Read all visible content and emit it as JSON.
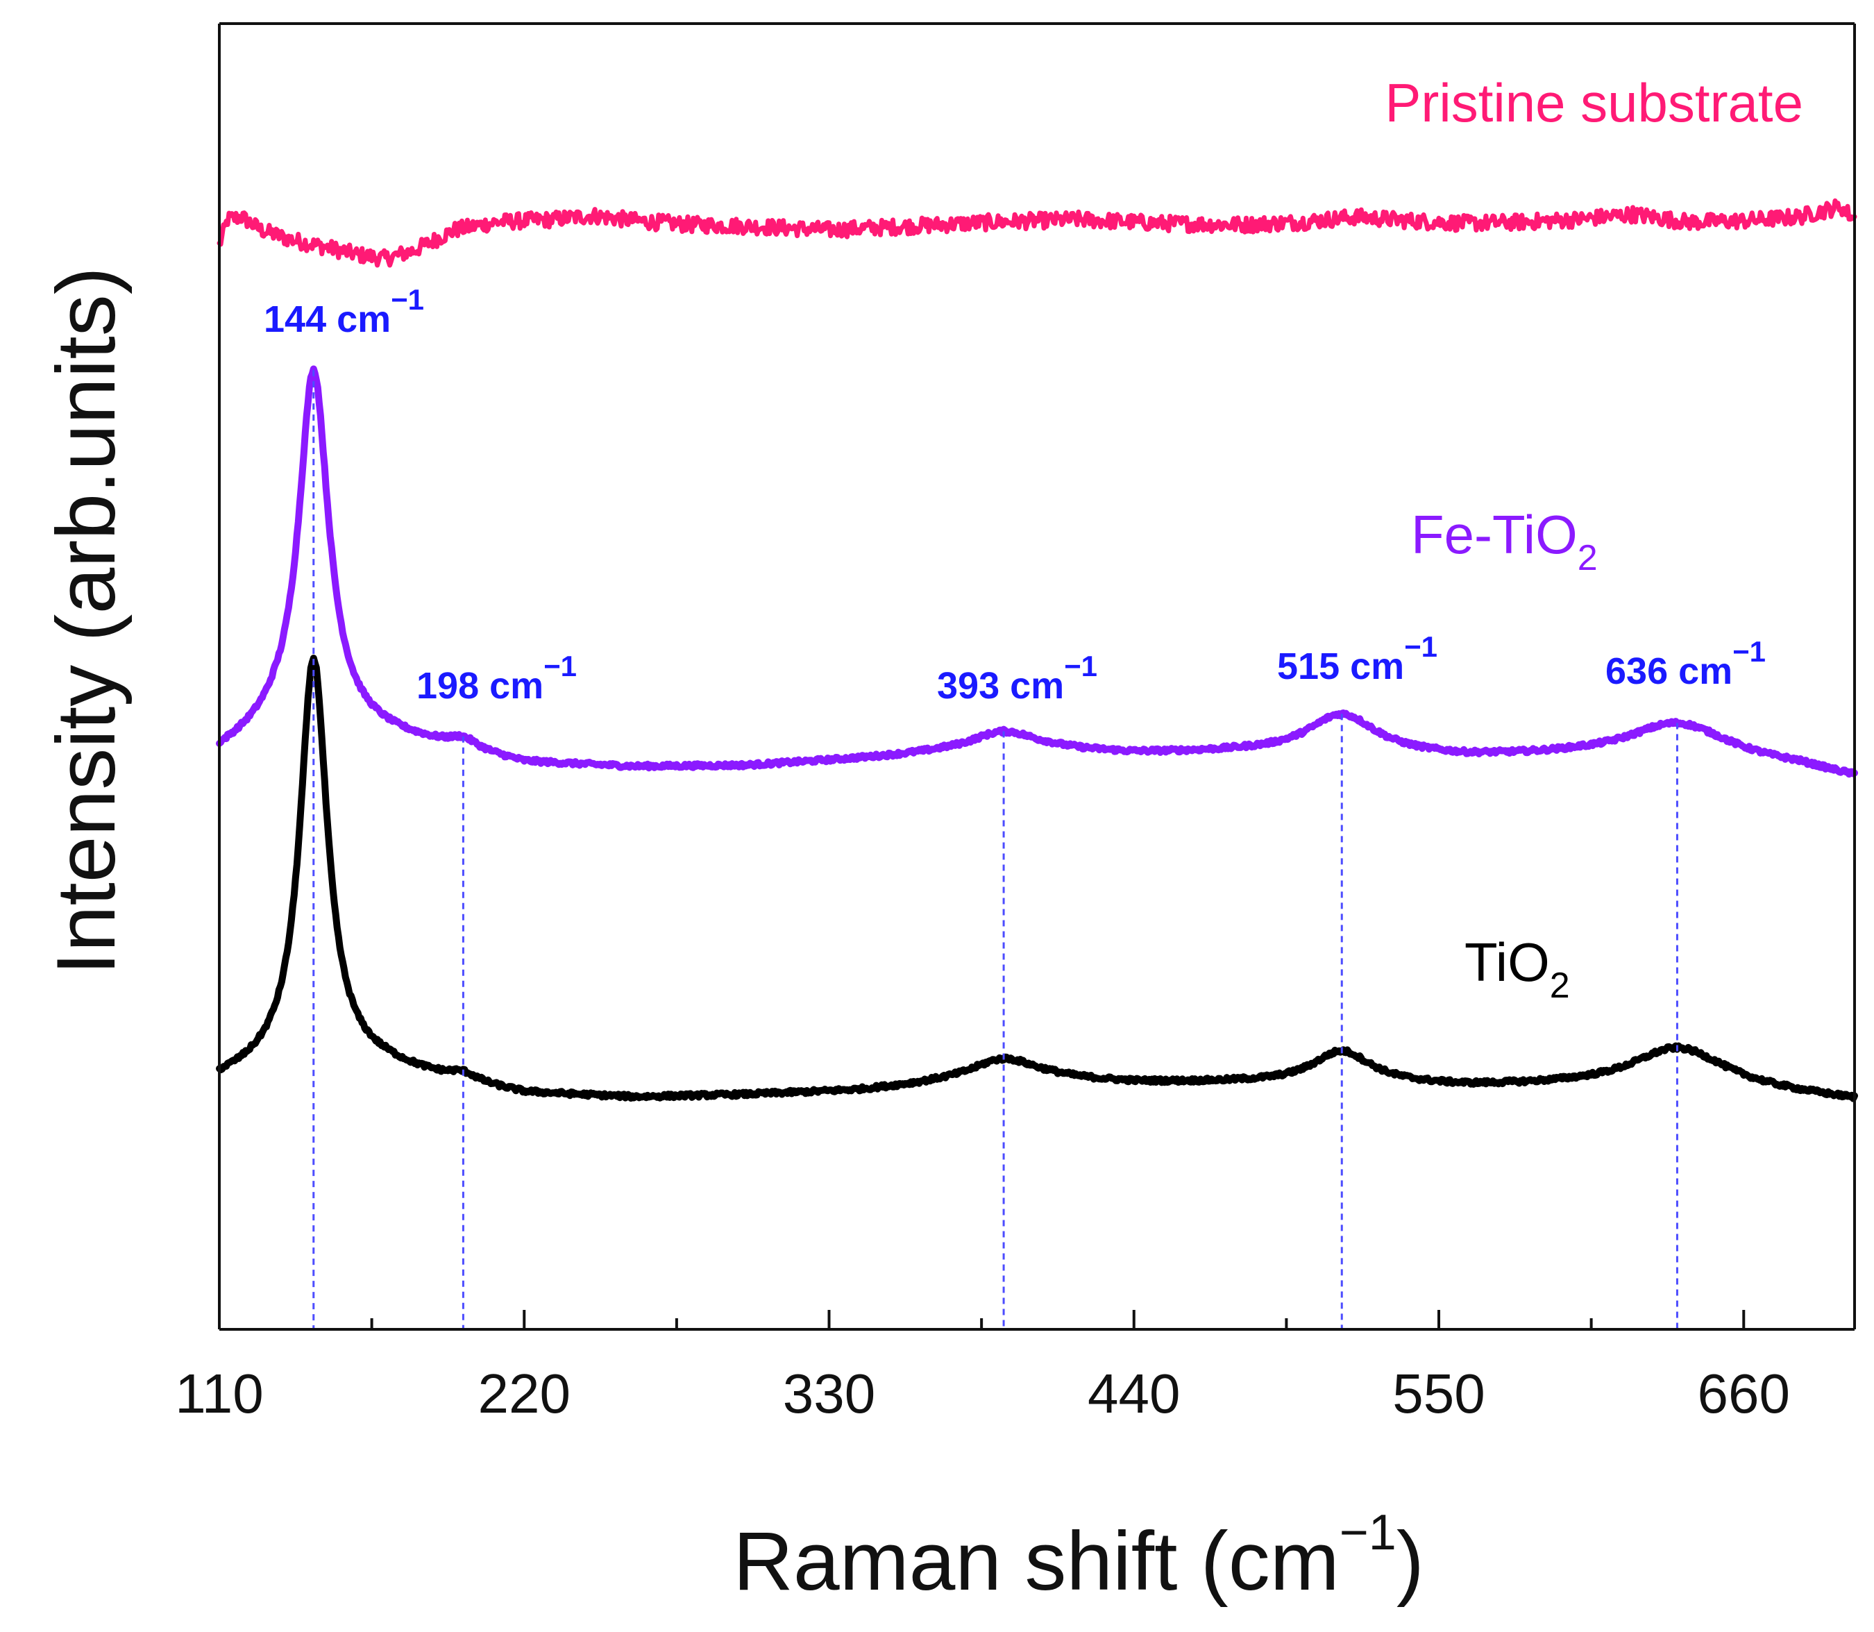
{
  "chart_data": {
    "type": "line",
    "xlabel": "Raman shift (cm",
    "xlabel_sup": "−1",
    "xlabel_suffix": ")",
    "ylabel": "Intensity (arb.units)",
    "xlim": [
      110,
      700
    ],
    "ylim": [
      0,
      100
    ],
    "x_ticks": [
      110,
      220,
      330,
      440,
      550,
      660
    ],
    "y_ticks_shown": false,
    "grid": false,
    "colors": {
      "axis": "#111111",
      "pristine": "#ff1a75",
      "fe_tio2": "#8b1aff",
      "tio2": "#000000",
      "peak_label": "#1a1aff",
      "peak_line": "#4d4dff"
    },
    "series": [
      {
        "name": "Pristine substrate",
        "color_key": "pristine",
        "noise": 0.6,
        "points": [
          [
            110,
            83.0
          ],
          [
            113,
            85.0
          ],
          [
            118,
            85.2
          ],
          [
            125,
            84.2
          ],
          [
            135,
            83.5
          ],
          [
            150,
            82.8
          ],
          [
            160,
            82.3
          ],
          [
            170,
            82.0
          ],
          [
            180,
            82.6
          ],
          [
            195,
            84.2
          ],
          [
            210,
            84.8
          ],
          [
            230,
            85.0
          ],
          [
            245,
            85.3
          ],
          [
            260,
            84.9
          ],
          [
            280,
            84.6
          ],
          [
            300,
            84.5
          ],
          [
            330,
            84.2
          ],
          [
            360,
            84.5
          ],
          [
            390,
            84.8
          ],
          [
            420,
            85.0
          ],
          [
            450,
            84.7
          ],
          [
            480,
            84.6
          ],
          [
            500,
            84.8
          ],
          [
            520,
            85.2
          ],
          [
            540,
            84.9
          ],
          [
            560,
            84.7
          ],
          [
            580,
            84.8
          ],
          [
            600,
            85.0
          ],
          [
            620,
            85.4
          ],
          [
            640,
            84.8
          ],
          [
            660,
            84.9
          ],
          [
            680,
            85.2
          ],
          [
            695,
            86.0
          ],
          [
            700,
            85.0
          ]
        ],
        "label": "Pristine substrate"
      },
      {
        "name": "Fe-TiO2",
        "color_key": "fe_tio2",
        "noise": 0.15,
        "baseline": [
          [
            110,
            44.0
          ],
          [
            130,
            45.8
          ],
          [
            150,
            46.0
          ],
          [
            170,
            45.3
          ],
          [
            198,
            44.3
          ],
          [
            220,
            43.3
          ],
          [
            260,
            43.0
          ],
          [
            300,
            43.1
          ],
          [
            340,
            43.6
          ],
          [
            370,
            44.0
          ],
          [
            410,
            44.2
          ],
          [
            440,
            44.0
          ],
          [
            480,
            44.1
          ],
          [
            520,
            44.0
          ],
          [
            560,
            43.7
          ],
          [
            600,
            43.8
          ],
          [
            650,
            43.5
          ],
          [
            680,
            43.0
          ],
          [
            700,
            42.2
          ]
        ],
        "peaks": [
          {
            "x": 144,
            "height": 27.5,
            "width": 6.5
          },
          {
            "x": 198,
            "height": 0.7,
            "width": 6
          },
          {
            "x": 393,
            "height": 1.6,
            "width": 15
          },
          {
            "x": 515,
            "height": 3.0,
            "width": 15
          },
          {
            "x": 636,
            "height": 2.8,
            "width": 22
          }
        ],
        "label": "Fe-TiO",
        "label_sub": "2"
      },
      {
        "name": "TiO2",
        "color_key": "tio2",
        "noise": 0.15,
        "baseline": [
          [
            110,
            19.0
          ],
          [
            130,
            20.0
          ],
          [
            150,
            20.5
          ],
          [
            170,
            20.0
          ],
          [
            198,
            18.8
          ],
          [
            220,
            18.0
          ],
          [
            260,
            17.7
          ],
          [
            300,
            17.9
          ],
          [
            340,
            18.2
          ],
          [
            370,
            18.7
          ],
          [
            410,
            19.0
          ],
          [
            440,
            18.8
          ],
          [
            480,
            18.8
          ],
          [
            520,
            18.7
          ],
          [
            560,
            18.5
          ],
          [
            600,
            18.6
          ],
          [
            650,
            18.5
          ],
          [
            680,
            17.9
          ],
          [
            700,
            17.5
          ]
        ],
        "peaks": [
          {
            "x": 144,
            "height": 31.0,
            "width": 6.0
          },
          {
            "x": 198,
            "height": 0.6,
            "width": 6
          },
          {
            "x": 393,
            "height": 1.8,
            "width": 15
          },
          {
            "x": 515,
            "height": 2.5,
            "width": 13
          },
          {
            "x": 636,
            "height": 3.0,
            "width": 20
          }
        ],
        "label": "TiO",
        "label_sub": "2"
      }
    ],
    "peak_annotations": [
      {
        "x": 144,
        "value": "144",
        "unit": "cm",
        "sup": "−1"
      },
      {
        "x": 198,
        "value": "198",
        "unit": "cm",
        "sup": "−1"
      },
      {
        "x": 393,
        "value": "393",
        "unit": "cm",
        "sup": "−1"
      },
      {
        "x": 515,
        "value": "515",
        "unit": "cm",
        "sup": "−1"
      },
      {
        "x": 636,
        "value": "636",
        "unit": "cm",
        "sup": "−1"
      }
    ]
  }
}
